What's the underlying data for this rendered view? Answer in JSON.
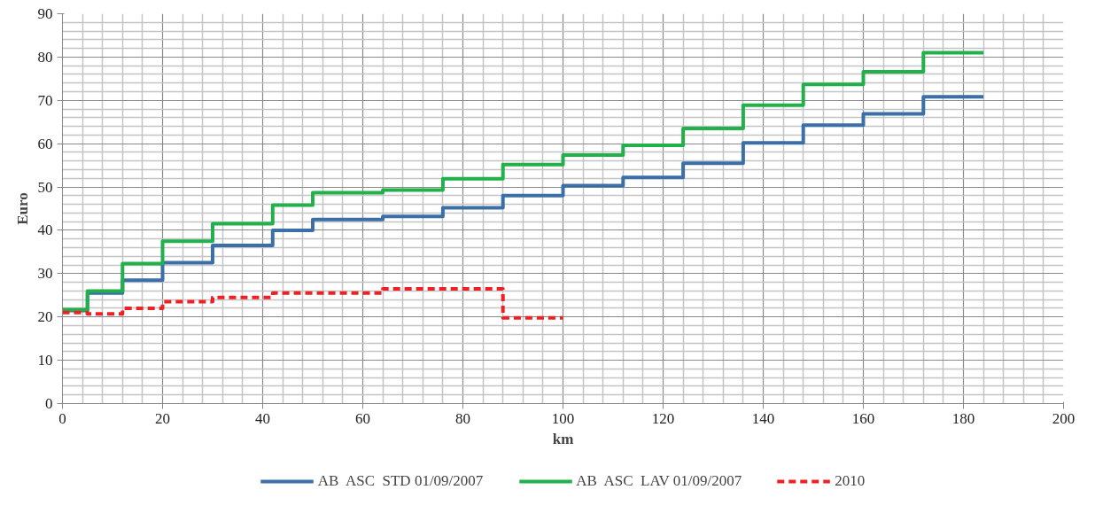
{
  "chart_data": {
    "type": "step",
    "xlabel": "km",
    "ylabel": "Euro",
    "xlim": [
      0,
      200
    ],
    "xticks": [
      0,
      20,
      40,
      60,
      80,
      100,
      120,
      140,
      160,
      180,
      200
    ],
    "ylim": [
      0,
      90
    ],
    "yticks": [
      0,
      10,
      20,
      30,
      40,
      50,
      60,
      70,
      80,
      90
    ],
    "grid": true,
    "legend": "bottom",
    "series": [
      {
        "name": "AB  ASC  STD 01/09/2007",
        "color": "#3a6fa8",
        "line_style": "solid",
        "x": [
          0,
          5,
          12,
          20,
          30,
          42,
          50,
          64,
          76,
          88,
          100,
          112,
          124,
          136,
          148,
          160,
          172,
          184
        ],
        "values": [
          21.5,
          25.5,
          28.5,
          32.5,
          36.5,
          40,
          42.5,
          43.2,
          45.2,
          48,
          50.3,
          52.2,
          55.5,
          60.2,
          64.3,
          66.9,
          70.8,
          70.8
        ]
      },
      {
        "name": "AB  ASC  LAV 01/09/2007",
        "color": "#22b04b",
        "line_style": "solid",
        "x": [
          0,
          5,
          12,
          20,
          30,
          42,
          50,
          64,
          76,
          88,
          100,
          112,
          124,
          136,
          148,
          160,
          172,
          184
        ],
        "values": [
          21.7,
          26,
          32.3,
          37.5,
          41.5,
          45.8,
          48.7,
          49.3,
          51.9,
          55.2,
          57.4,
          59.6,
          63.5,
          68.9,
          73.7,
          76.6,
          81,
          81
        ]
      },
      {
        "name": "2010",
        "color": "#ee2024",
        "line_style": "dashed",
        "x": [
          0,
          5,
          12,
          20,
          30,
          42,
          64,
          88,
          100
        ],
        "values": [
          21,
          20.7,
          22,
          23.5,
          24.5,
          25.5,
          26.5,
          19.8,
          19.8
        ]
      }
    ]
  }
}
